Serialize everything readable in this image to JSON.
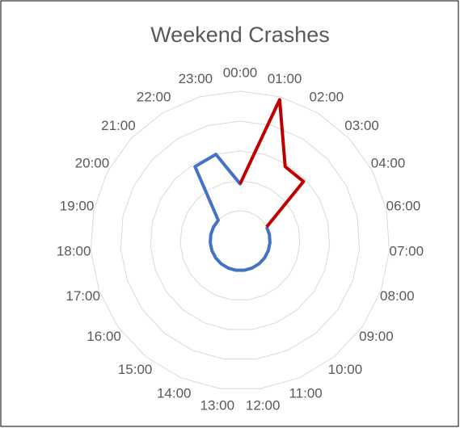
{
  "chart_data": {
    "type": "radar",
    "title": "Weekend Crashes",
    "categories": [
      "00:00",
      "01:00",
      "02:00",
      "03:00",
      "04:00",
      "06:00",
      "07:00",
      "08:00",
      "09:00",
      "10:00",
      "11:00",
      "12:00",
      "13:00",
      "14:00",
      "15:00",
      "16:00",
      "17:00",
      "18:00",
      "19:00",
      "20:00",
      "21:00",
      "22:00",
      "23:00"
    ],
    "series": [
      {
        "color": "#4472c4",
        "values": [
          1.9,
          null,
          null,
          null,
          1,
          1,
          1,
          1,
          1,
          1,
          1,
          1,
          1,
          1,
          1,
          1,
          1,
          1,
          1,
          1,
          1,
          2.9,
          3.0
        ]
      },
      {
        "color": "#c00000",
        "values": [
          1.9,
          4.9,
          2.9,
          2.9,
          1,
          null,
          null,
          null,
          null,
          null,
          null,
          null,
          null,
          null,
          null,
          null,
          null,
          null,
          null,
          null,
          null,
          null,
          null
        ]
      }
    ],
    "ylim": [
      0,
      5
    ],
    "yticks": [
      1,
      2,
      3,
      4,
      5
    ],
    "grid": true
  }
}
